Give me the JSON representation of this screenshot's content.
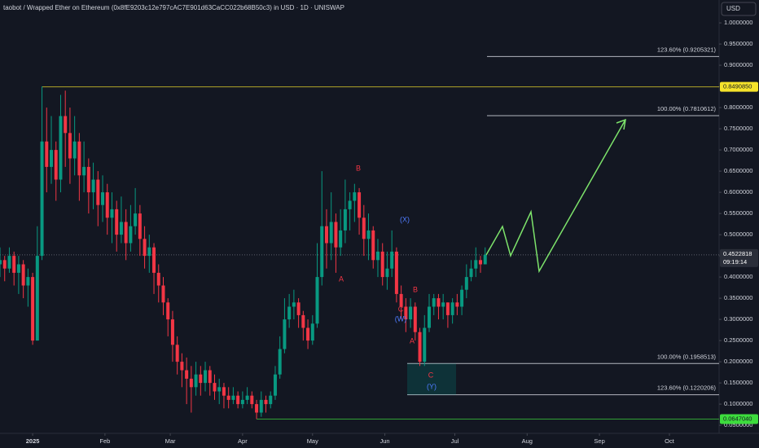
{
  "chart_data": {
    "type": "candlestick",
    "title": "taobot / Wrapped Ether on Ethereum (0x8fE9203c12e797cAC7E901d63CaCC022b68B50c3) in USD · 1D · UNISWAP",
    "currency": "USD",
    "up_color": "#089981",
    "down_color": "#f23645",
    "x": [
      -14,
      -12,
      -10,
      -8,
      -6,
      -4,
      -2,
      0,
      2,
      4,
      6,
      8,
      10,
      12,
      14,
      16,
      18,
      20,
      22,
      24,
      26,
      28,
      30,
      32,
      34,
      36,
      38,
      40,
      42,
      44,
      46,
      48,
      50,
      52,
      54,
      56,
      58,
      60,
      62,
      64,
      66,
      68,
      70,
      72,
      74,
      76,
      78,
      80,
      82,
      84,
      86,
      88,
      90,
      92,
      94,
      96,
      98,
      100,
      102,
      104,
      106,
      108,
      110,
      112,
      114,
      116,
      118,
      120,
      122,
      124,
      126,
      128,
      130,
      132,
      134,
      136,
      138,
      140,
      142,
      144,
      146,
      148,
      150,
      152,
      154,
      156,
      158,
      160,
      162,
      164,
      166,
      168,
      170,
      172,
      174,
      176,
      178,
      180,
      182,
      184,
      186,
      188,
      190,
      192,
      194
    ],
    "open": [
      0.43,
      0.44,
      0.42,
      0.45,
      0.41,
      0.43,
      0.38,
      0.4,
      0.25,
      0.45,
      0.72,
      0.66,
      0.7,
      0.63,
      0.78,
      0.74,
      0.68,
      0.72,
      0.64,
      0.66,
      0.6,
      0.63,
      0.57,
      0.6,
      0.54,
      0.56,
      0.5,
      0.53,
      0.48,
      0.52,
      0.55,
      0.49,
      0.45,
      0.47,
      0.41,
      0.38,
      0.34,
      0.3,
      0.24,
      0.2,
      0.18,
      0.16,
      0.14,
      0.17,
      0.15,
      0.18,
      0.15,
      0.13,
      0.14,
      0.12,
      0.11,
      0.12,
      0.1,
      0.11,
      0.12,
      0.1,
      0.08,
      0.11,
      0.1,
      0.12,
      0.17,
      0.23,
      0.3,
      0.33,
      0.34,
      0.31,
      0.28,
      0.25,
      0.29,
      0.4,
      0.52,
      0.48,
      0.53,
      0.47,
      0.51,
      0.56,
      0.58,
      0.6,
      0.54,
      0.49,
      0.51,
      0.44,
      0.46,
      0.4,
      0.42,
      0.46,
      0.36,
      0.33,
      0.3,
      0.33,
      0.27,
      0.2,
      0.28,
      0.33,
      0.35,
      0.33,
      0.34,
      0.31,
      0.34,
      0.33,
      0.37,
      0.4,
      0.42,
      0.44,
      0.43
    ],
    "high": [
      0.47,
      0.45,
      0.47,
      0.46,
      0.45,
      0.44,
      0.42,
      0.41,
      0.52,
      0.85,
      0.8,
      0.78,
      0.72,
      0.83,
      0.84,
      0.8,
      0.78,
      0.74,
      0.72,
      0.68,
      0.67,
      0.65,
      0.64,
      0.62,
      0.6,
      0.58,
      0.59,
      0.56,
      0.57,
      0.61,
      0.57,
      0.52,
      0.5,
      0.48,
      0.43,
      0.4,
      0.35,
      0.32,
      0.26,
      0.22,
      0.21,
      0.19,
      0.2,
      0.19,
      0.2,
      0.19,
      0.17,
      0.16,
      0.15,
      0.14,
      0.14,
      0.13,
      0.13,
      0.14,
      0.13,
      0.11,
      0.13,
      0.12,
      0.13,
      0.19,
      0.26,
      0.35,
      0.36,
      0.37,
      0.35,
      0.32,
      0.3,
      0.31,
      0.48,
      0.65,
      0.56,
      0.6,
      0.55,
      0.56,
      0.63,
      0.6,
      0.62,
      0.61,
      0.57,
      0.55,
      0.52,
      0.49,
      0.48,
      0.46,
      0.51,
      0.47,
      0.38,
      0.35,
      0.35,
      0.34,
      0.28,
      0.31,
      0.36,
      0.36,
      0.36,
      0.36,
      0.34,
      0.35,
      0.36,
      0.38,
      0.43,
      0.44,
      0.47,
      0.45,
      0.47
    ],
    "low": [
      0.4,
      0.39,
      0.41,
      0.38,
      0.36,
      0.35,
      0.33,
      0.24,
      0.25,
      0.44,
      0.6,
      0.62,
      0.58,
      0.6,
      0.66,
      0.62,
      0.64,
      0.58,
      0.6,
      0.55,
      0.56,
      0.52,
      0.53,
      0.5,
      0.48,
      0.46,
      0.48,
      0.44,
      0.46,
      0.5,
      0.45,
      0.42,
      0.41,
      0.36,
      0.34,
      0.31,
      0.26,
      0.2,
      0.17,
      0.14,
      0.1,
      0.08,
      0.12,
      0.12,
      0.13,
      0.12,
      0.11,
      0.1,
      0.09,
      0.09,
      0.1,
      0.09,
      0.09,
      0.1,
      0.09,
      0.065,
      0.07,
      0.08,
      0.09,
      0.11,
      0.16,
      0.22,
      0.28,
      0.3,
      0.28,
      0.25,
      0.23,
      0.24,
      0.28,
      0.38,
      0.42,
      0.44,
      0.41,
      0.45,
      0.48,
      0.51,
      0.53,
      0.5,
      0.45,
      0.44,
      0.42,
      0.4,
      0.38,
      0.37,
      0.4,
      0.34,
      0.3,
      0.27,
      0.28,
      0.25,
      0.19,
      0.19,
      0.27,
      0.31,
      0.3,
      0.3,
      0.28,
      0.29,
      0.31,
      0.31,
      0.35,
      0.39,
      0.4,
      0.41,
      0.43
    ],
    "close": [
      0.44,
      0.42,
      0.45,
      0.41,
      0.43,
      0.38,
      0.4,
      0.25,
      0.45,
      0.72,
      0.66,
      0.7,
      0.63,
      0.78,
      0.74,
      0.68,
      0.72,
      0.64,
      0.66,
      0.6,
      0.63,
      0.57,
      0.6,
      0.54,
      0.56,
      0.5,
      0.53,
      0.48,
      0.52,
      0.55,
      0.49,
      0.45,
      0.47,
      0.41,
      0.38,
      0.34,
      0.3,
      0.24,
      0.2,
      0.18,
      0.16,
      0.14,
      0.17,
      0.15,
      0.18,
      0.15,
      0.13,
      0.14,
      0.12,
      0.11,
      0.12,
      0.1,
      0.11,
      0.12,
      0.1,
      0.08,
      0.11,
      0.1,
      0.12,
      0.17,
      0.23,
      0.3,
      0.33,
      0.34,
      0.31,
      0.28,
      0.25,
      0.29,
      0.4,
      0.52,
      0.48,
      0.53,
      0.47,
      0.51,
      0.56,
      0.58,
      0.6,
      0.54,
      0.49,
      0.51,
      0.44,
      0.46,
      0.4,
      0.42,
      0.46,
      0.36,
      0.33,
      0.3,
      0.33,
      0.27,
      0.2,
      0.28,
      0.33,
      0.35,
      0.33,
      0.34,
      0.31,
      0.34,
      0.33,
      0.37,
      0.4,
      0.42,
      0.44,
      0.43,
      0.4522818
    ],
    "xlim": [
      -14,
      294.3
    ],
    "xticks": [
      {
        "value": 0,
        "label": "2025"
      },
      {
        "value": 31,
        "label": "Feb"
      },
      {
        "value": 59,
        "label": "Mar"
      },
      {
        "value": 90,
        "label": "Apr"
      },
      {
        "value": 120,
        "label": "May"
      },
      {
        "value": 151,
        "label": "Jun"
      },
      {
        "value": 181,
        "label": "Jul"
      },
      {
        "value": 212,
        "label": "Aug"
      },
      {
        "value": 243,
        "label": "Sep"
      },
      {
        "value": 273,
        "label": "Oct"
      }
    ],
    "ylim": [
      0.031,
      1.054
    ],
    "yticks": [
      {
        "value": 0.05,
        "label": "0.0500000"
      },
      {
        "value": 0.1,
        "label": "0.1000000"
      },
      {
        "value": 0.15,
        "label": "0.1500000"
      },
      {
        "value": 0.2,
        "label": "0.2000000"
      },
      {
        "value": 0.25,
        "label": "0.2500000"
      },
      {
        "value": 0.3,
        "label": "0.3000000"
      },
      {
        "value": 0.35,
        "label": "0.3500000"
      },
      {
        "value": 0.4,
        "label": "0.4000000"
      },
      {
        "value": 0.45,
        "label": "0.4500000"
      },
      {
        "value": 0.5,
        "label": "0.5000000"
      },
      {
        "value": 0.55,
        "label": "0.5500000"
      },
      {
        "value": 0.6,
        "label": "0.6000000"
      },
      {
        "value": 0.65,
        "label": "0.6500000"
      },
      {
        "value": 0.7,
        "label": "0.7000000"
      },
      {
        "value": 0.75,
        "label": "0.7500000"
      },
      {
        "value": 0.8,
        "label": "0.8000000"
      },
      {
        "value": 0.85,
        "label": "0.8500000"
      },
      {
        "value": 0.9,
        "label": "0.9000000"
      },
      {
        "value": 0.95,
        "label": "0.9500000"
      },
      {
        "value": 1.0,
        "label": "1.0000000"
      }
    ],
    "grid": false,
    "fib_levels": [
      {
        "value": 0.9205321,
        "label": "123.60% (0.9205321)"
      },
      {
        "value": 0.7810612,
        "label": "100.00% (0.7810612)"
      },
      {
        "value": 0.1958513,
        "label": "100.00% (0.1958513)"
      },
      {
        "value": 0.1220206,
        "label": "123.60% (0.1220206)"
      }
    ],
    "price_lines": [
      {
        "value": 0.849085,
        "label": "0.8490850",
        "color": "#f5e32b"
      },
      {
        "value": 0.064704,
        "label": "0.0647040",
        "color": "#3ddc3d"
      }
    ],
    "last_price_label": "0.4522818",
    "countdown": "09:19:14",
    "wave_labels": [
      "A",
      "B",
      "(X)",
      "B",
      "C",
      "(W)",
      "A",
      "C",
      "(Y)"
    ]
  }
}
